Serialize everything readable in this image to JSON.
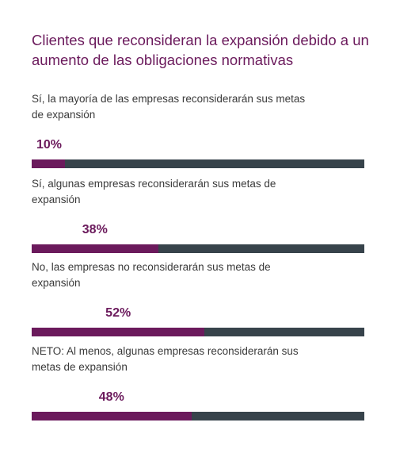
{
  "chart_data": {
    "type": "bar",
    "title": "Clientes que reconsideran la expansión debido a un aumento de las obligaciones normativas",
    "categories": [
      "Sí, la mayoría de las empresas reconsiderarán sus metas de expansión",
      "Sí, algunas empresas reconsiderarán sus metas de expansión",
      "No, las empresas no reconsiderarán sus metas de expansión",
      "NETO: Al menos, algunas empresas reconsiderarán sus metas de expansión"
    ],
    "values": [
      10,
      38,
      52,
      48
    ],
    "value_labels": [
      "10%",
      "38%",
      "52%",
      "48%"
    ],
    "unit": "%",
    "ylim": [
      0,
      100
    ],
    "orientation": "horizontal",
    "colors": {
      "title": "#6b1a5c",
      "fill": "#6b1a5c",
      "track": "#37434b",
      "label": "#3a3a3a"
    }
  }
}
